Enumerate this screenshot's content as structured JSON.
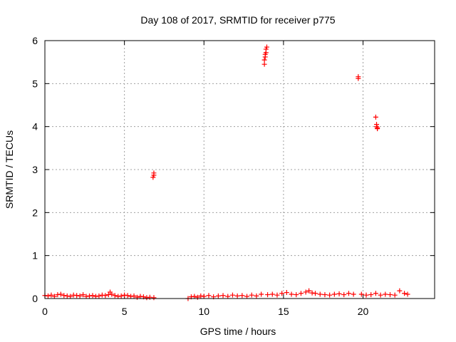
{
  "chart_data": {
    "type": "scatter",
    "title": "Day 108 of 2017, SRMTID for receiver p775",
    "xlabel": "GPS time / hours",
    "ylabel": "SRMTID / TECUs",
    "xlim": [
      0,
      24.5
    ],
    "ylim": [
      0,
      6
    ],
    "x_ticks": [
      0,
      5,
      10,
      15,
      20
    ],
    "y_ticks": [
      0,
      1,
      2,
      3,
      4,
      5,
      6
    ],
    "x_tick_labels": [
      "0",
      "5",
      "10",
      "15",
      "20"
    ],
    "y_tick_labels": [
      "0",
      "1",
      "2",
      "3",
      "4",
      "5",
      "6"
    ],
    "grid": true,
    "marker": "+",
    "color": "#ff0000",
    "series": [
      {
        "name": "SRMTID",
        "x": [
          0.0,
          0.2,
          0.4,
          0.6,
          0.8,
          1.0,
          1.2,
          1.4,
          1.6,
          1.8,
          2.0,
          2.2,
          2.4,
          2.6,
          2.8,
          3.0,
          3.2,
          3.4,
          3.6,
          3.8,
          4.0,
          4.1,
          4.2,
          4.4,
          4.6,
          4.8,
          5.0,
          5.2,
          5.4,
          5.6,
          5.8,
          6.0,
          6.2,
          6.4,
          6.6,
          6.8,
          6.85,
          6.85,
          6.85,
          9.0,
          9.2,
          9.4,
          9.6,
          9.8,
          10.0,
          10.3,
          10.6,
          10.9,
          11.2,
          11.5,
          11.8,
          12.1,
          12.4,
          12.7,
          13.0,
          13.3,
          13.6,
          13.8,
          13.8,
          13.85,
          13.85,
          13.9,
          13.9,
          13.95,
          14.0,
          14.3,
          14.6,
          14.9,
          15.2,
          15.5,
          15.8,
          16.1,
          16.4,
          16.6,
          16.8,
          17.0,
          17.3,
          17.6,
          17.9,
          18.2,
          18.5,
          18.8,
          19.1,
          19.4,
          19.7,
          19.7,
          19.9,
          20.2,
          20.5,
          20.8,
          20.8,
          20.85,
          20.85,
          20.9,
          20.9,
          21.1,
          21.4,
          21.7,
          22.0,
          22.3,
          22.6,
          22.8
        ],
        "y": [
          0.07,
          0.06,
          0.08,
          0.05,
          0.09,
          0.1,
          0.07,
          0.06,
          0.05,
          0.08,
          0.07,
          0.06,
          0.09,
          0.05,
          0.06,
          0.07,
          0.05,
          0.06,
          0.08,
          0.07,
          0.09,
          0.15,
          0.1,
          0.07,
          0.05,
          0.06,
          0.08,
          0.07,
          0.05,
          0.06,
          0.03,
          0.05,
          0.04,
          0.02,
          0.03,
          2.82,
          2.87,
          2.92,
          0.02,
          0.0,
          0.04,
          0.05,
          0.03,
          0.06,
          0.05,
          0.07,
          0.04,
          0.06,
          0.07,
          0.05,
          0.08,
          0.06,
          0.07,
          0.05,
          0.08,
          0.06,
          0.1,
          5.45,
          5.55,
          5.62,
          5.68,
          5.72,
          5.8,
          5.85,
          0.09,
          0.1,
          0.08,
          0.12,
          0.14,
          0.1,
          0.09,
          0.12,
          0.15,
          0.18,
          0.13,
          0.12,
          0.1,
          0.09,
          0.08,
          0.1,
          0.11,
          0.09,
          0.12,
          0.1,
          5.12,
          5.16,
          0.1,
          0.08,
          0.09,
          0.12,
          4.22,
          4.05,
          4.0,
          3.97,
          3.95,
          0.08,
          0.1,
          0.09,
          0.08,
          0.18,
          0.12,
          0.1
        ]
      }
    ]
  }
}
